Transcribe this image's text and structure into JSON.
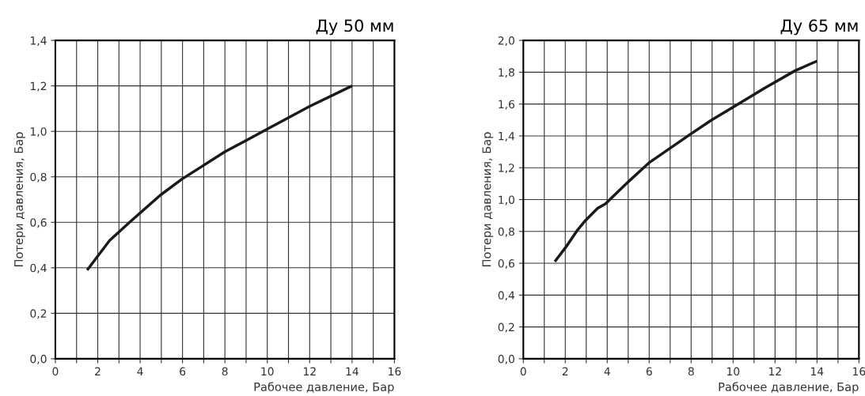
{
  "chart_data": [
    {
      "type": "line",
      "title": "Ду 50 мм",
      "xlabel": "Рабочее давление, Бар",
      "ylabel": "Потери давления, Бар",
      "series": [
        {
          "color": "#1a1a1a",
          "x": [
            1.5,
            2.56,
            3.5,
            4.96,
            5.97,
            8,
            9,
            10,
            12,
            14
          ],
          "values": [
            0.39,
            0.52,
            0.6,
            0.72,
            0.79,
            0.91,
            0.96,
            1.01,
            1.11,
            1.2
          ]
        }
      ],
      "xlim": [
        0,
        16
      ],
      "ylim": [
        0,
        1.4
      ],
      "xticks": [
        0,
        {
          "value": 1,
          "label": null
        },
        2,
        {
          "value": 3,
          "label": null
        },
        4,
        {
          "value": 5,
          "label": null
        },
        6,
        {
          "value": 7,
          "label": null
        },
        8,
        {
          "value": 9,
          "label": null
        },
        10,
        {
          "value": 11,
          "label": null
        },
        12,
        {
          "value": 13,
          "label": null
        },
        14,
        {
          "value": 15,
          "label": null
        },
        16
      ],
      "yticks": [
        {
          "value": 0,
          "label": "0,0"
        },
        {
          "value": 0.2,
          "label": "0,2"
        },
        {
          "value": 0.4,
          "label": "0,4"
        },
        {
          "value": 0.6,
          "label": "0,6"
        },
        {
          "value": 0.8,
          "label": "0,8"
        },
        {
          "value": 1.0,
          "label": "1,0"
        },
        {
          "value": 1.2,
          "label": "1,2"
        },
        {
          "value": 1.4,
          "label": "1,4"
        }
      ],
      "grid": true,
      "marker": "none",
      "line_style": "solid",
      "legend": false
    },
    {
      "type": "line",
      "title": "Ду 65 мм",
      "xlabel": "Рабочее давление, Бар",
      "ylabel": "Потери давления, Бар",
      "series": [
        {
          "color": "#1a1a1a",
          "x": [
            1.5,
            2.02,
            2.59,
            2.97,
            3.54,
            3.92,
            4.99,
            5.98,
            7.96,
            8.98,
            9.99,
            11.5,
            12.96,
            14
          ],
          "values": [
            0.61,
            0.7,
            0.81,
            0.87,
            0.945,
            0.974,
            1.11,
            1.23,
            1.41,
            1.5,
            1.58,
            1.7,
            1.81,
            1.87
          ]
        }
      ],
      "xlim": [
        0,
        16
      ],
      "ylim": [
        0,
        2.0
      ],
      "xticks": [
        0,
        {
          "value": 1,
          "label": null
        },
        2,
        {
          "value": 3,
          "label": null
        },
        4,
        {
          "value": 5,
          "label": null
        },
        6,
        {
          "value": 7,
          "label": null
        },
        8,
        {
          "value": 9,
          "label": null
        },
        10,
        {
          "value": 11,
          "label": null
        },
        12,
        {
          "value": 13,
          "label": null
        },
        14,
        {
          "value": 15,
          "label": null
        },
        16
      ],
      "yticks": [
        {
          "value": 0,
          "label": "0,0"
        },
        {
          "value": 0.2,
          "label": "0,2"
        },
        {
          "value": 0.4,
          "label": "0,4"
        },
        {
          "value": 0.6,
          "label": "0,6"
        },
        {
          "value": 0.8,
          "label": "0,8"
        },
        {
          "value": 1.0,
          "label": "1,0"
        },
        {
          "value": 1.2,
          "label": "1,2"
        },
        {
          "value": 1.4,
          "label": "1,4"
        },
        {
          "value": 1.6,
          "label": "1,6"
        },
        {
          "value": 1.8,
          "label": "1,8"
        },
        {
          "value": 2.0,
          "label": "2,0"
        }
      ],
      "grid": true,
      "marker": "none",
      "line_style": "solid",
      "legend": false
    }
  ]
}
